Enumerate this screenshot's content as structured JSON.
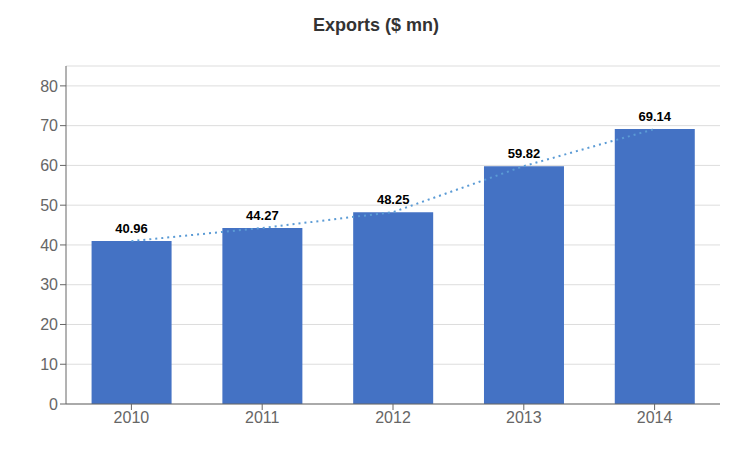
{
  "chart_data": {
    "type": "bar",
    "title": "Exports ($ mn)",
    "categories": [
      "2010",
      "2011",
      "2012",
      "2013",
      "2014"
    ],
    "series": [
      {
        "type": "bar",
        "color": "#4472C4",
        "values": [
          40.96,
          44.27,
          48.25,
          59.82,
          69.14
        ]
      },
      {
        "type": "line",
        "color": "#5B9BD5",
        "line_style": "dotted",
        "values": [
          40.96,
          44.27,
          48.25,
          59.82,
          69.14
        ]
      }
    ],
    "ylim": [
      0,
      85
    ],
    "yticks": [
      0,
      10,
      20,
      30,
      40,
      50,
      60,
      70,
      80
    ],
    "grid": true,
    "data_labels": true
  }
}
